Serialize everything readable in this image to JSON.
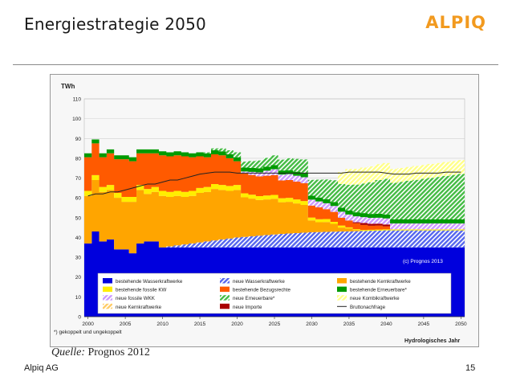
{
  "slide": {
    "title": "Energiestrategie 2050",
    "logo_text": "ALPIQ",
    "footer_left": "Alpiq AG",
    "page_number": "15",
    "source_label": "Quelle:",
    "source_value": " Prognos 2012"
  },
  "colors": {
    "accent": "#f29a1f",
    "hydro_existing": "#0000dd",
    "hydro_new": "#5566ee",
    "fossil_existing": "#ffee00",
    "entitlements": "#ff5a00",
    "renewables_existing": "#009a00",
    "renewables_new": "#44bb44",
    "combined_cycle_new": "#ffff88",
    "nuclear_existing": "#ffa500",
    "wkk_new": "#cc99ff",
    "imports_new": "#aa0000",
    "nuclear_new": "#ffcc66",
    "demand_line": "#222222"
  },
  "chart_data": {
    "type": "area",
    "yunit": "TWh",
    "ylim": [
      0,
      110
    ],
    "yticks": [
      0,
      10,
      20,
      30,
      40,
      50,
      60,
      70,
      80,
      90,
      100,
      110
    ],
    "xlim": [
      1999.5,
      2050.5
    ],
    "xticks": [
      2000,
      2005,
      2010,
      2015,
      2020,
      2025,
      2030,
      2035,
      2040,
      2045,
      2050
    ],
    "xlabel": "Hydrologisches Jahr",
    "copyright": "(c) Prognos 2013",
    "footnote": "*) gekoppelt und ungekoppelt",
    "x": [
      2000,
      2001,
      2002,
      2003,
      2004,
      2005,
      2006,
      2007,
      2008,
      2009,
      2010,
      2011,
      2012,
      2013,
      2014,
      2015,
      2016,
      2017,
      2018,
      2019,
      2020,
      2021,
      2022,
      2023,
      2024,
      2025,
      2026,
      2027,
      2028,
      2029,
      2030,
      2031,
      2032,
      2033,
      2034,
      2035,
      2036,
      2037,
      2038,
      2039,
      2040,
      2041,
      2042,
      2043,
      2044,
      2045,
      2046,
      2047,
      2048,
      2049,
      2050
    ],
    "series": [
      {
        "name": "bestehende Wasserkraftwerke",
        "key": "hydro_existing",
        "pattern": false,
        "values": [
          37,
          43,
          38,
          39,
          34,
          34,
          32,
          37,
          38,
          38,
          35,
          35,
          35,
          35,
          35,
          35,
          35,
          35,
          35,
          35,
          35,
          35,
          35,
          35,
          35,
          35,
          35,
          35,
          35,
          35,
          35,
          35,
          35,
          35,
          35,
          35,
          35,
          35,
          35,
          35,
          35,
          35,
          35,
          35,
          35,
          35,
          35,
          35,
          35,
          35,
          35
        ]
      },
      {
        "name": "neue Wasserkraftwerke",
        "key": "hydro_new",
        "pattern": true,
        "values": [
          0,
          0,
          0,
          0,
          0,
          0,
          0,
          0,
          0,
          0,
          0,
          0.5,
          1,
          1.5,
          2,
          2.5,
          3,
          3.5,
          4,
          4.5,
          5,
          5.3,
          5.6,
          5.9,
          6.2,
          6.5,
          6.8,
          7,
          7.2,
          7.4,
          7.6,
          7.7,
          7.8,
          7.9,
          8,
          8.1,
          8.2,
          8.3,
          8.4,
          8.5,
          8.6,
          8.6,
          8.6,
          8.6,
          8.6,
          8.6,
          8.6,
          8.6,
          8.6,
          8.6,
          8.6
        ]
      },
      {
        "name": "bestehende Kernkraftwerke",
        "key": "nuclear_existing",
        "pattern": false,
        "values": [
          24,
          26,
          25,
          25,
          26,
          24,
          26,
          27,
          24,
          25,
          26,
          25,
          25,
          24,
          24,
          25,
          25,
          26,
          25,
          24,
          24,
          20,
          19,
          18,
          18,
          18,
          16,
          16,
          15,
          14,
          6,
          5,
          5,
          4,
          2,
          1.5,
          0.5,
          0,
          0,
          0,
          0,
          0,
          0,
          0,
          0,
          0,
          0,
          0,
          0,
          0,
          0
        ]
      },
      {
        "name": "bestehende fossile KW",
        "key": "fossil_existing",
        "pattern": false,
        "values": [
          2.5,
          2.5,
          2.5,
          2.5,
          2.5,
          2.5,
          2.5,
          2.5,
          2.5,
          2.5,
          2.5,
          2.5,
          2.5,
          2.5,
          2.5,
          2.5,
          2.5,
          2.5,
          2.5,
          2.5,
          2.5,
          2,
          2,
          2,
          2,
          2,
          2,
          2,
          2,
          2,
          1.5,
          1.5,
          1.5,
          1,
          1,
          0.5,
          0.5,
          0.5,
          0.5,
          0.5,
          0.5,
          0.5,
          0.5,
          0.5,
          0.5,
          0.5,
          0.5,
          0.5,
          0.5,
          0.5,
          0.5
        ]
      },
      {
        "name": "bestehende Bezugsrechte",
        "key": "entitlements",
        "pattern": false,
        "values": [
          17,
          16,
          15,
          16,
          17,
          19,
          18,
          16,
          18,
          17,
          18,
          18,
          18,
          18,
          17,
          16,
          15,
          15,
          15,
          14,
          12,
          10,
          10,
          10,
          10,
          10,
          9,
          9,
          9,
          9,
          6,
          6,
          5,
          5,
          4,
          3.5,
          3,
          2.5,
          2,
          2,
          1.5,
          0,
          0,
          0,
          0,
          0,
          0,
          0,
          0,
          0,
          0
        ]
      },
      {
        "name": "neue Importe",
        "key": "imports_new",
        "pattern": false,
        "values": [
          0,
          0,
          0,
          0,
          0,
          0,
          0,
          0,
          0,
          0,
          0,
          0,
          0,
          0,
          0,
          0,
          0,
          0,
          0,
          0,
          0,
          0,
          0,
          0,
          0,
          0,
          0,
          0,
          0,
          0,
          0,
          0,
          0,
          0,
          0,
          0,
          0.5,
          1,
          1,
          1,
          1,
          0,
          0,
          0,
          0,
          0,
          0,
          0,
          0,
          0,
          0
        ]
      },
      {
        "name": "neue fossile WKK",
        "key": "wkk_new",
        "pattern": true,
        "values": [
          0,
          0,
          0,
          0,
          0,
          0,
          0,
          0,
          0,
          0,
          0,
          0,
          0,
          0,
          0,
          0,
          0,
          0,
          0,
          0,
          0,
          1,
          1.5,
          2,
          2.5,
          3,
          3,
          3,
          3,
          3,
          3,
          3,
          3,
          3,
          3,
          3,
          3,
          3,
          3,
          3,
          3,
          3,
          3,
          3,
          3,
          3,
          3,
          3,
          3,
          3,
          3
        ]
      },
      {
        "name": "bestehende Erneuerbare*",
        "key": "renewables_existing",
        "pattern": false,
        "values": [
          2,
          2,
          2,
          2,
          2,
          2,
          2,
          2,
          2,
          2,
          2,
          2,
          2,
          2,
          2,
          2,
          2,
          2,
          2,
          2,
          2,
          2,
          2,
          2,
          2,
          2,
          2,
          2,
          2,
          2,
          2,
          2,
          2,
          2,
          2,
          2,
          2,
          2,
          2,
          2,
          2,
          2,
          2,
          2,
          2,
          2,
          2,
          2,
          2,
          2,
          2
        ]
      },
      {
        "name": "neue Erneuerbare*",
        "key": "renewables_new",
        "pattern": true,
        "values": [
          0,
          0,
          0,
          0,
          0,
          0,
          0,
          0,
          0,
          0,
          0,
          0,
          0,
          0,
          0,
          0,
          0.5,
          1,
          1.5,
          2,
          2.5,
          3,
          3.5,
          4,
          4.5,
          5,
          5.5,
          6,
          6.5,
          7,
          8,
          9,
          10,
          11,
          12,
          13,
          14,
          15,
          16,
          17,
          18,
          18.5,
          19,
          19.5,
          20,
          20.5,
          21,
          21.5,
          22,
          22.5,
          23
        ]
      },
      {
        "name": "neue Kernkraftwerke",
        "key": "nuclear_new",
        "pattern": true,
        "values": [
          0,
          0,
          0,
          0,
          0,
          0,
          0,
          0,
          0,
          0,
          0,
          0,
          0,
          0,
          0,
          0,
          0,
          0,
          0,
          0,
          0,
          0,
          0,
          0,
          0,
          0,
          0,
          0,
          0,
          0,
          0,
          0,
          0,
          0,
          0,
          0,
          0,
          0,
          0,
          0,
          0,
          0,
          0,
          0,
          0,
          0,
          0,
          0,
          0,
          0,
          0
        ]
      },
      {
        "name": "neue Kombikraftwerke",
        "key": "combined_cycle_new",
        "pattern": true,
        "values": [
          0,
          0,
          0,
          0,
          0,
          0,
          0,
          0,
          0,
          0,
          0,
          0,
          0,
          0,
          0,
          0,
          0,
          0,
          0,
          0,
          0,
          0,
          0,
          0,
          0,
          0,
          0,
          0,
          0,
          0,
          0,
          0,
          0,
          0,
          6,
          8,
          8,
          8,
          8,
          8,
          8,
          7,
          7,
          7,
          7,
          7,
          7,
          7,
          7,
          7,
          7
        ]
      }
    ],
    "demand": {
      "name": "Bruttonachfrage",
      "values": [
        61,
        62,
        62,
        63,
        63,
        64,
        65,
        66,
        67,
        67,
        68,
        69,
        69,
        70,
        71,
        72,
        72.5,
        73,
        73,
        73,
        72.5,
        72.5,
        72.5,
        72.5,
        72.5,
        72.5,
        72.5,
        72.5,
        72.5,
        72.5,
        72.5,
        72.5,
        72.5,
        72.5,
        72.5,
        73,
        73,
        73,
        73,
        73,
        72.5,
        72,
        72,
        72,
        72.5,
        72.5,
        72.5,
        72.5,
        73,
        73,
        73
      ]
    },
    "legend_order": [
      "bestehende Wasserkraftwerke",
      "neue Wasserkraftwerke",
      "bestehende Kernkraftwerke",
      "bestehende fossile KW",
      "bestehende Bezugsrechte",
      "bestehende Erneuerbare*",
      "neue fossile WKK",
      "neue Erneuerbare*",
      "neue Kombikraftwerke",
      "neue Kernkraftwerke",
      "neue Importe",
      "Bruttonachfrage"
    ]
  }
}
